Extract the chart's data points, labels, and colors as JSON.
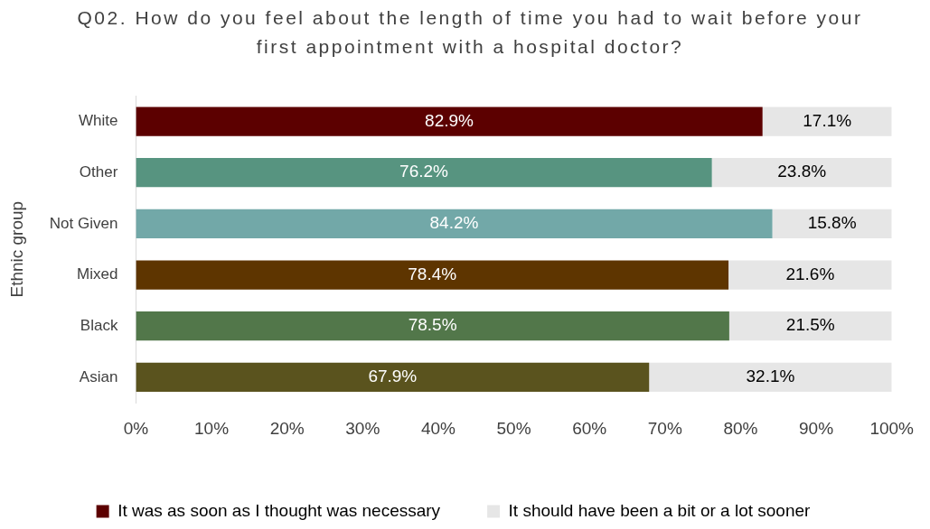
{
  "chart_data": {
    "type": "bar",
    "orientation": "horizontal",
    "stacked": true,
    "title": "Q02. How do you feel about the length of time you had to wait before your first appointment with a hospital doctor?",
    "ylabel": "Ethnic group",
    "categories": [
      "White",
      "Other",
      "Not Given",
      "Mixed",
      "Black",
      "Asian"
    ],
    "series": [
      {
        "name": "It was as soon as I thought was necessary",
        "colors": [
          "#5c0000",
          "#579480",
          "#72a8a8",
          "#5e3500",
          "#52774a",
          "#5a531e"
        ],
        "values": [
          82.9,
          76.2,
          84.2,
          78.4,
          78.5,
          67.9
        ],
        "value_labels": [
          "82.9%",
          "76.2%",
          "84.2%",
          "78.4%",
          "78.5%",
          "67.9%"
        ]
      },
      {
        "name": "It should have been a bit or a lot sooner",
        "color": "#e6e6e6",
        "values": [
          17.1,
          23.8,
          15.8,
          21.6,
          21.5,
          32.1
        ],
        "value_labels": [
          "17.1%",
          "23.8%",
          "15.8%",
          "21.6%",
          "21.5%",
          "32.1%"
        ]
      }
    ],
    "xlim": [
      0,
      100
    ],
    "xticks": [
      {
        "value": 0,
        "label": "0%"
      },
      {
        "value": 10,
        "label": "10%"
      },
      {
        "value": 20,
        "label": "20%"
      },
      {
        "value": 30,
        "label": "30%"
      },
      {
        "value": 40,
        "label": "40%"
      },
      {
        "value": 50,
        "label": "50%"
      },
      {
        "value": 60,
        "label": "60%"
      },
      {
        "value": 70,
        "label": "70%"
      },
      {
        "value": 80,
        "label": "80%"
      },
      {
        "value": 90,
        "label": "90%"
      },
      {
        "value": 100,
        "label": "100%"
      }
    ],
    "grid": false,
    "legend": "bottom"
  }
}
